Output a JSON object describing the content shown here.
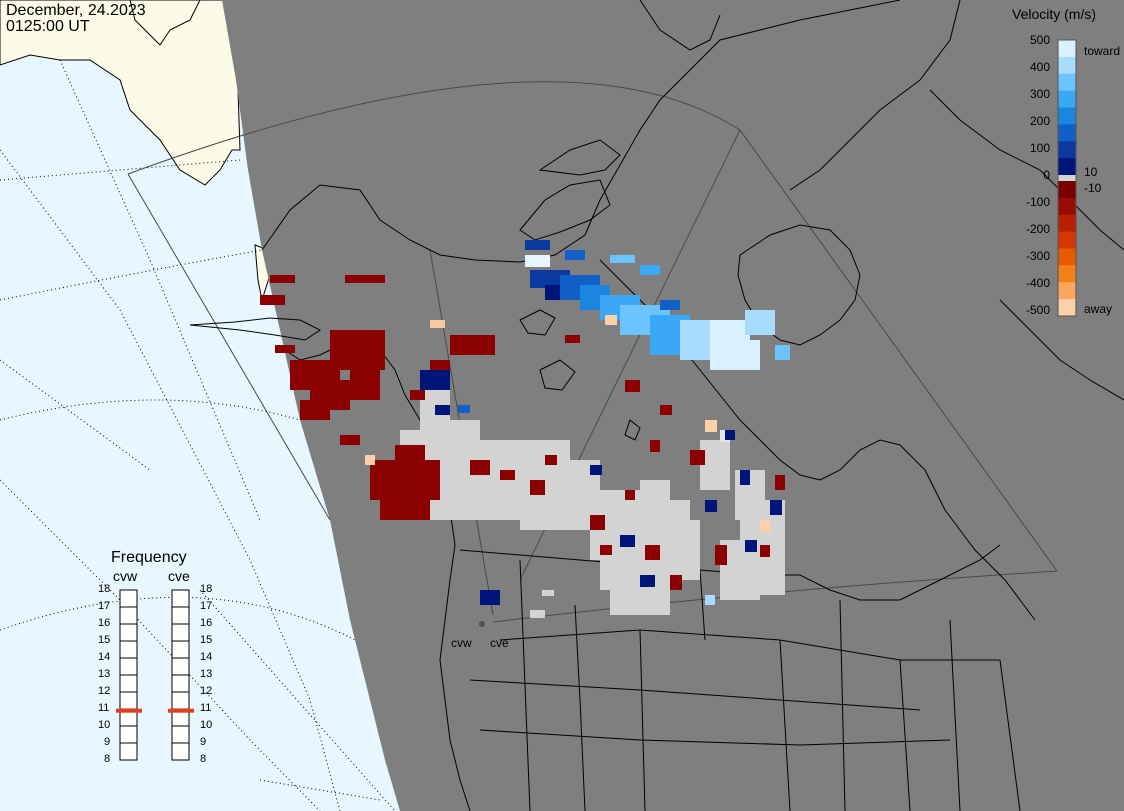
{
  "header": {
    "date": "December, 24.2023",
    "time": "0125:00 UT"
  },
  "colors": {
    "ocean": "#e8f6ff",
    "land_outside": "#fbfbe8",
    "fov_mask": "#7f7f7f",
    "coastline": "#000000",
    "ground_scatter": "#d3d3d3",
    "frequency_marker": "#e0401c"
  },
  "velocity_scale": {
    "title": "Velocity (m/s)",
    "ticks": [
      "500",
      "400",
      "300",
      "200",
      "100",
      "0",
      "-100",
      "-200",
      "-300",
      "-400",
      "-500"
    ],
    "threshold_high": "10",
    "threshold_low": "-10",
    "toward_label": "toward",
    "away_label": "away",
    "colors_toward": [
      "#d9f0ff",
      "#a8dcff",
      "#6cc4ff",
      "#3aa8f4",
      "#1a86e0",
      "#1060c8",
      "#0a3aa0",
      "#00157a"
    ],
    "colors_away": [
      "#7a0000",
      "#990a00",
      "#b82000",
      "#d43800",
      "#e65a00",
      "#f28018",
      "#f8a660",
      "#fcd0a8"
    ]
  },
  "frequency": {
    "title": "Frequency",
    "radars": [
      "cvw",
      "cve"
    ],
    "ticks": [
      "18",
      "17",
      "16",
      "15",
      "14",
      "13",
      "12",
      "11",
      "10",
      "9",
      "8"
    ],
    "selected_mhz": [
      10.9,
      10.9
    ]
  },
  "radar_sites": [
    "cvw",
    "cve"
  ]
}
